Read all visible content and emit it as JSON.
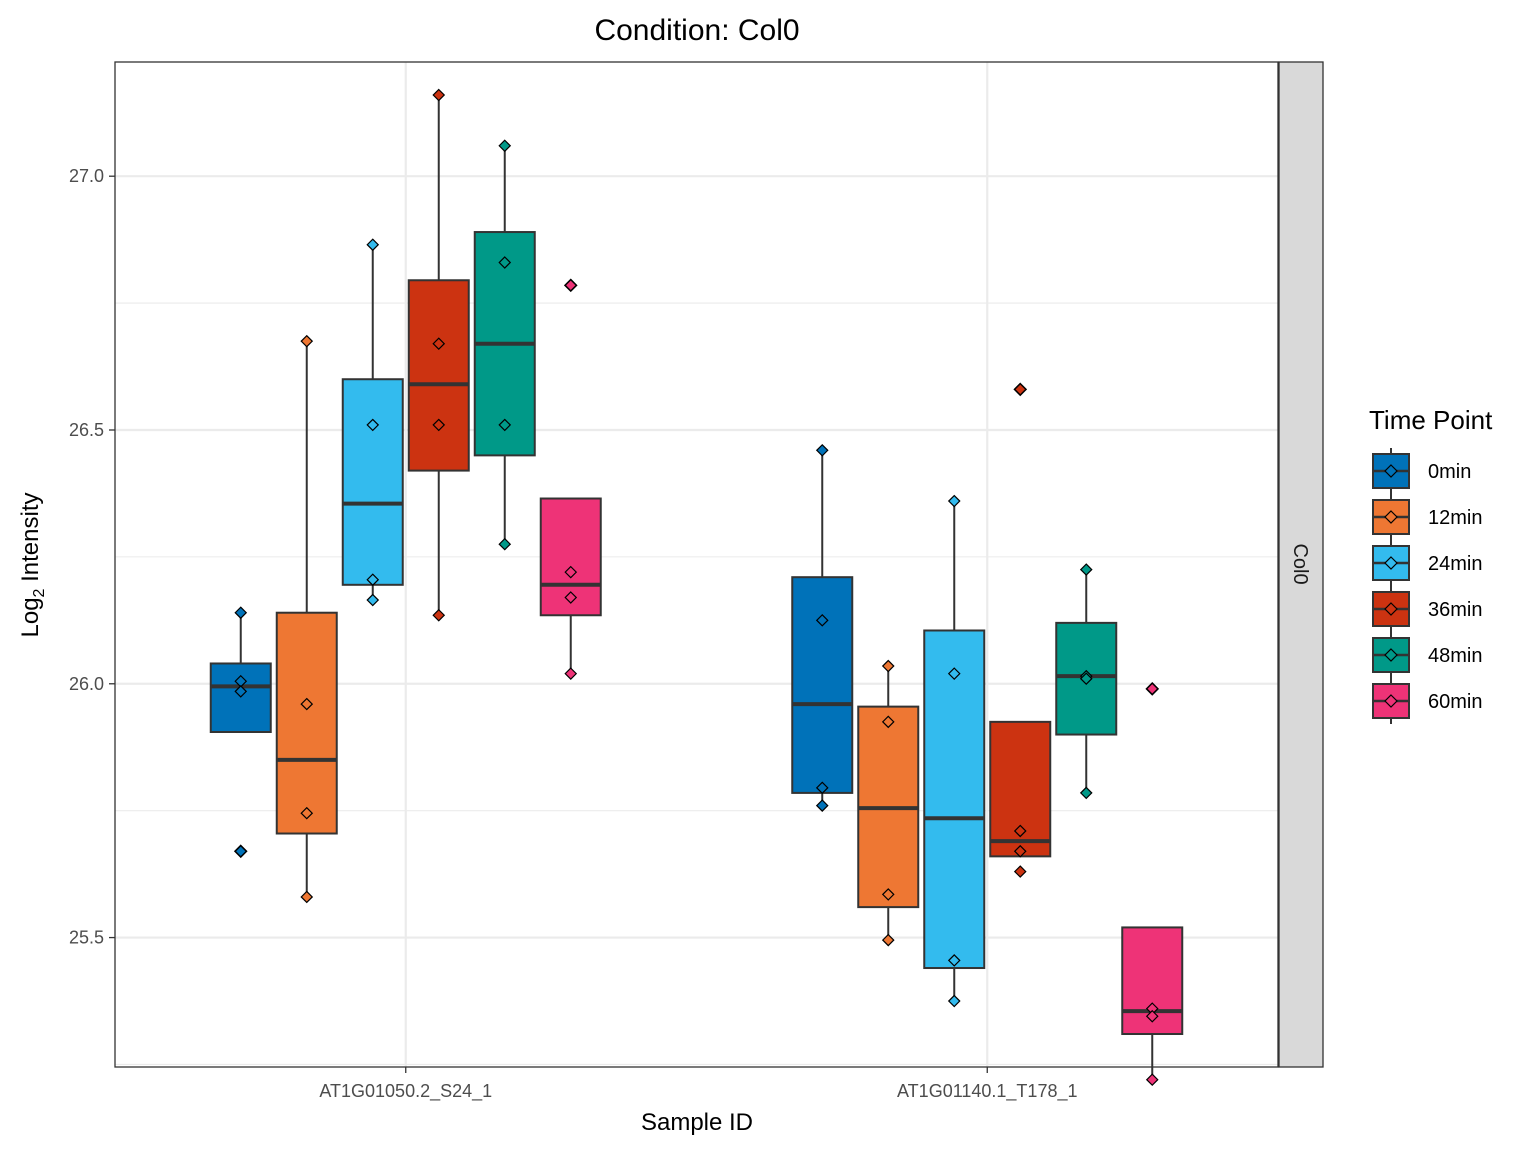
{
  "chart_data": {
    "type": "boxplot",
    "title": "Condition: Col0",
    "xlabel": "Sample ID",
    "ylabel": "Log2 Intensity",
    "ylabel_base": "Log",
    "ylabel_sub": "2",
    "ylabel_rest": " Intensity",
    "ylim": [
      25.245,
      27.225
    ],
    "yticks": [
      25.5,
      26.0,
      26.5,
      27.0
    ],
    "ytick_labels": [
      "25.5",
      "26.0",
      "26.5",
      "27.0"
    ],
    "grid": true,
    "facet_label": "Col0",
    "categories": [
      "AT1G01050.2_S24_1",
      "AT1G01140.1_T178_1"
    ],
    "legend": {
      "title": "Time Point",
      "position": "right"
    },
    "series": [
      {
        "name": "0min",
        "color": "#0072B9",
        "boxes": [
          {
            "q1": 25.905,
            "median": 25.995,
            "q3": 26.04,
            "whisker_low": 25.905,
            "whisker_high": 26.14,
            "points": [
              26.14,
              26.005,
              25.985,
              25.67
            ],
            "outliers": [
              25.67
            ]
          },
          {
            "q1": 25.785,
            "median": 25.96,
            "q3": 26.21,
            "whisker_low": 25.76,
            "whisker_high": 26.46,
            "points": [
              26.46,
              26.125,
              25.795,
              25.76
            ],
            "outliers": []
          }
        ]
      },
      {
        "name": "12min",
        "color": "#EE7733",
        "boxes": [
          {
            "q1": 25.705,
            "median": 25.85,
            "q3": 26.14,
            "whisker_low": 25.58,
            "whisker_high": 26.675,
            "points": [
              26.675,
              25.96,
              25.745,
              25.58
            ],
            "outliers": []
          },
          {
            "q1": 25.56,
            "median": 25.755,
            "q3": 25.955,
            "whisker_low": 25.495,
            "whisker_high": 26.035,
            "points": [
              26.035,
              25.925,
              25.585,
              25.495
            ],
            "outliers": []
          }
        ]
      },
      {
        "name": "24min",
        "color": "#33BBEE",
        "boxes": [
          {
            "q1": 26.195,
            "median": 26.355,
            "q3": 26.6,
            "whisker_low": 26.165,
            "whisker_high": 26.865,
            "points": [
              26.865,
              26.51,
              26.205,
              26.165
            ],
            "outliers": []
          },
          {
            "q1": 25.44,
            "median": 25.735,
            "q3": 26.105,
            "whisker_low": 25.375,
            "whisker_high": 26.36,
            "points": [
              26.36,
              26.02,
              25.455,
              25.375
            ],
            "outliers": []
          }
        ]
      },
      {
        "name": "36min",
        "color": "#CC3311",
        "boxes": [
          {
            "q1": 26.42,
            "median": 26.59,
            "q3": 26.795,
            "whisker_low": 26.135,
            "whisker_high": 27.16,
            "points": [
              27.16,
              26.67,
              26.51,
              26.135
            ],
            "outliers": []
          },
          {
            "q1": 25.66,
            "median": 25.69,
            "q3": 25.925,
            "whisker_low": 25.66,
            "whisker_high": 25.925,
            "points": [
              26.58,
              25.71,
              25.67,
              25.63
            ],
            "outliers": [
              26.58
            ]
          }
        ]
      },
      {
        "name": "48min",
        "color": "#009988",
        "boxes": [
          {
            "q1": 26.45,
            "median": 26.67,
            "q3": 26.89,
            "whisker_low": 26.275,
            "whisker_high": 27.06,
            "points": [
              27.06,
              26.83,
              26.51,
              26.275
            ],
            "outliers": []
          },
          {
            "q1": 25.9,
            "median": 26.015,
            "q3": 26.12,
            "whisker_low": 25.785,
            "whisker_high": 26.225,
            "points": [
              26.225,
              26.015,
              26.01,
              25.785
            ],
            "outliers": []
          }
        ]
      },
      {
        "name": "60min",
        "color": "#EE3377",
        "boxes": [
          {
            "q1": 26.135,
            "median": 26.195,
            "q3": 26.365,
            "whisker_low": 26.02,
            "whisker_high": 26.365,
            "points": [
              26.785,
              26.22,
              26.17,
              26.02
            ],
            "outliers": [
              26.785
            ]
          },
          {
            "q1": 25.31,
            "median": 25.355,
            "q3": 25.52,
            "whisker_low": 25.22,
            "whisker_high": 25.52,
            "points": [
              25.99,
              25.36,
              25.345,
              25.22
            ],
            "outliers": [
              25.99
            ]
          }
        ]
      }
    ]
  }
}
